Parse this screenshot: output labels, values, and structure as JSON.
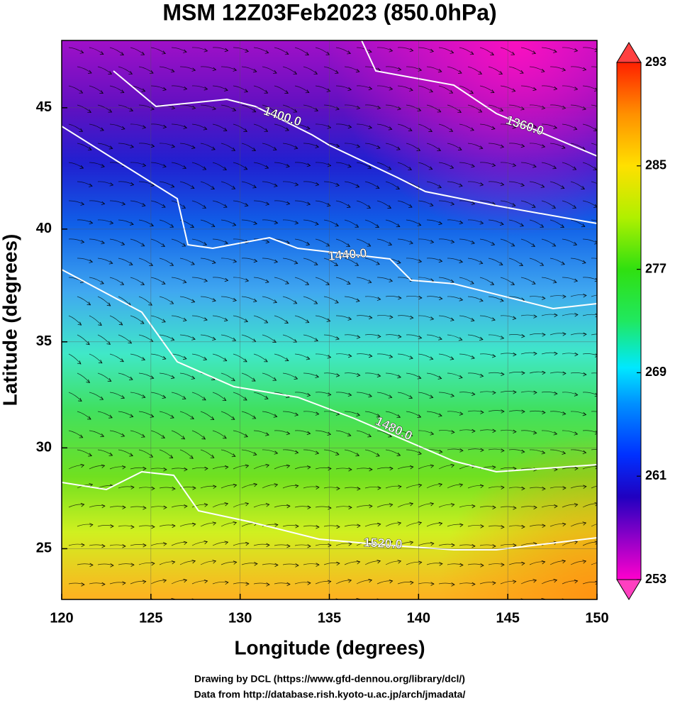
{
  "chart_data": {
    "type": "map",
    "title": "MSM 12Z03Feb2023 (850.0hPa)",
    "xlabel": "Longitude (degrees)",
    "ylabel": "Latitude  (degrees)",
    "xlim": [
      120,
      150
    ],
    "ylim": [
      22.4,
      47.6
    ],
    "xticks": [
      120,
      125,
      130,
      135,
      140,
      145,
      150
    ],
    "yticks": [
      25,
      30,
      35,
      40,
      45
    ],
    "grid": true,
    "projection": "mercator",
    "colorbar": {
      "lim": [
        253,
        293
      ],
      "ticks": [
        253,
        261,
        269,
        277,
        285,
        293
      ]
    },
    "contours": [
      {
        "value": 1360,
        "label": "1360.0"
      },
      {
        "value": 1400,
        "label": "1400.0"
      },
      {
        "value": 1440,
        "label": "1440.0"
      },
      {
        "value": 1480,
        "label": "1480.0"
      },
      {
        "value": 1520,
        "label": "1520.0"
      }
    ],
    "footer": [
      "Drawing by DCL (https://www.gfd-dennou.org/library/dcl/)",
      "Data from http://database.rish.kyoto-u.ac.jp/arch/jmadata/"
    ]
  }
}
